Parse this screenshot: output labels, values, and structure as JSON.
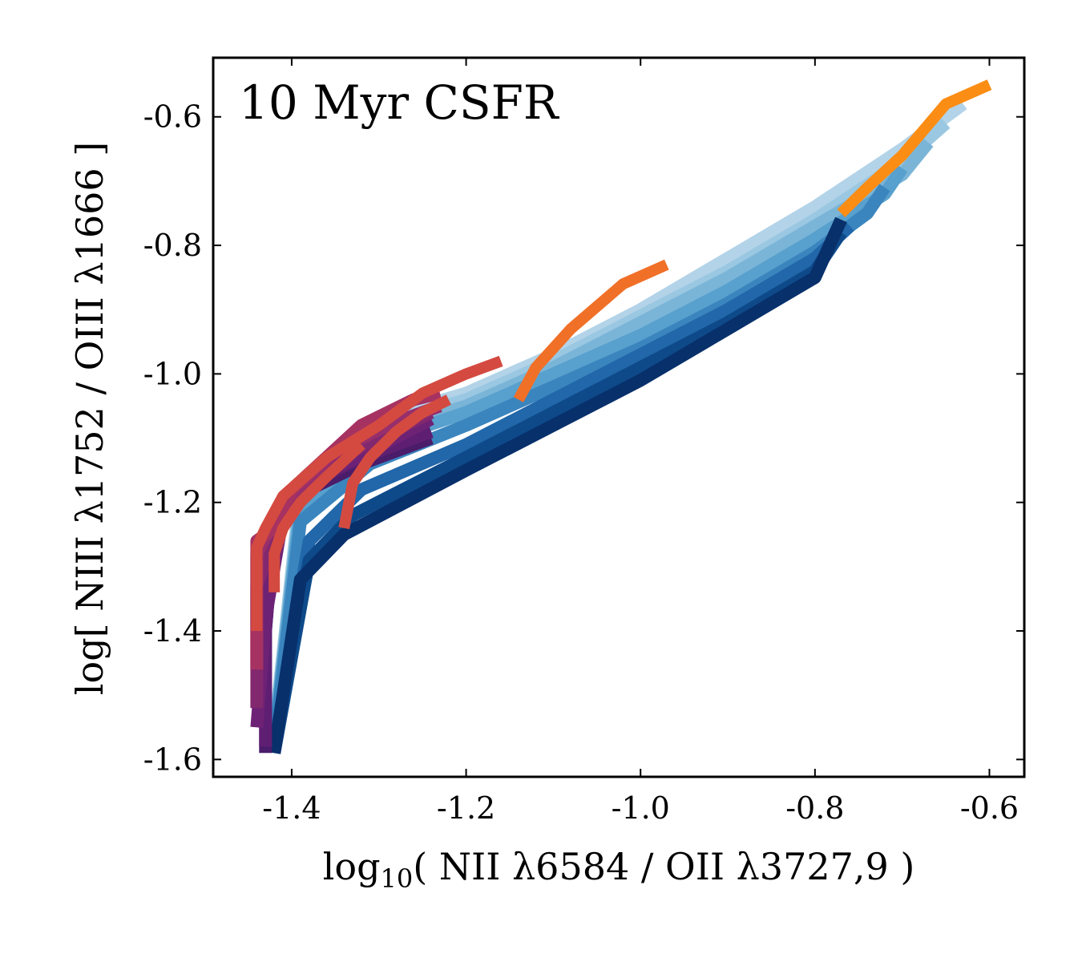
{
  "chart_data": {
    "type": "line",
    "title": "",
    "annotation": "10 Myr CSFR",
    "xlabel": {
      "pre": "log",
      "sub": "10",
      "post": "( NII λ6584 / OII λ3727,9 )"
    },
    "ylabel": "log[ NIII λ1752 / OIII λ1666 ]",
    "xlim": [
      -1.49,
      -0.56
    ],
    "ylim": [
      -1.627,
      -0.508
    ],
    "xticks": [
      -1.4,
      -1.2,
      -1.0,
      -0.8,
      -0.6
    ],
    "xtick_labels": [
      "-1.4",
      "-1.2",
      "-1.0",
      "-0.8",
      "-0.6"
    ],
    "yticks": [
      -1.6,
      -1.4,
      -1.2,
      -1.0,
      -0.8,
      -0.6
    ],
    "ytick_labels": [
      "-1.6",
      "-1.4",
      "-1.2",
      "-1.0",
      "-0.8",
      "-0.6"
    ],
    "background_grid_series": [
      {
        "name": "blue-1",
        "color": "#b3d3e8",
        "x": [
          -1.42,
          -1.39,
          -1.3,
          -1.2,
          -1.1,
          -1.0,
          -0.9,
          -0.8,
          -0.7,
          -0.63
        ],
        "y": [
          -1.56,
          -1.18,
          -1.07,
          -1.03,
          -0.97,
          -0.9,
          -0.82,
          -0.74,
          -0.65,
          -0.58
        ]
      },
      {
        "name": "blue-2",
        "color": "#9ac7e1",
        "x": [
          -1.42,
          -1.39,
          -1.3,
          -1.2,
          -1.1,
          -1.0,
          -0.9,
          -0.8,
          -0.7,
          -0.65
        ],
        "y": [
          -1.56,
          -1.19,
          -1.08,
          -1.04,
          -0.98,
          -0.91,
          -0.84,
          -0.76,
          -0.67,
          -0.61
        ]
      },
      {
        "name": "blue-3",
        "color": "#7ab5d8",
        "x": [
          -1.42,
          -1.39,
          -1.3,
          -1.2,
          -1.1,
          -1.0,
          -0.9,
          -0.8,
          -0.7,
          -0.67
        ],
        "y": [
          -1.57,
          -1.2,
          -1.09,
          -1.05,
          -0.99,
          -0.92,
          -0.85,
          -0.77,
          -0.69,
          -0.64
        ]
      },
      {
        "name": "blue-4",
        "color": "#58a0cd",
        "x": [
          -1.42,
          -1.39,
          -1.31,
          -1.2,
          -1.1,
          -1.0,
          -0.9,
          -0.8,
          -0.72,
          -0.7
        ],
        "y": [
          -1.57,
          -1.21,
          -1.11,
          -1.06,
          -1.0,
          -0.94,
          -0.87,
          -0.79,
          -0.72,
          -0.68
        ]
      },
      {
        "name": "blue-5",
        "color": "#3a85be",
        "x": [
          -1.42,
          -1.39,
          -1.31,
          -1.2,
          -1.1,
          -1.0,
          -0.9,
          -0.8,
          -0.74,
          -0.72
        ],
        "y": [
          -1.58,
          -1.23,
          -1.14,
          -1.08,
          -1.02,
          -0.96,
          -0.89,
          -0.81,
          -0.75,
          -0.71
        ]
      },
      {
        "name": "blue-6",
        "color": "#2167a9",
        "x": [
          -1.42,
          -1.38,
          -1.32,
          -1.2,
          -1.1,
          -1.0,
          -0.9,
          -0.8,
          -0.76
        ],
        "y": [
          -1.58,
          -1.26,
          -1.18,
          -1.11,
          -1.04,
          -0.97,
          -0.9,
          -0.82,
          -0.77
        ]
      },
      {
        "name": "blue-7",
        "color": "#0e4a8a",
        "x": [
          -1.42,
          -1.38,
          -1.33,
          -1.2,
          -1.1,
          -1.0,
          -0.9,
          -0.8,
          -0.77
        ],
        "y": [
          -1.59,
          -1.29,
          -1.22,
          -1.13,
          -1.06,
          -0.99,
          -0.92,
          -0.84,
          -0.78
        ]
      },
      {
        "name": "blue-8",
        "color": "#08306b",
        "x": [
          -1.42,
          -1.39,
          -1.34,
          -1.2,
          -1.1,
          -1.0,
          -0.9,
          -0.8,
          -0.77
        ],
        "y": [
          -1.59,
          -1.32,
          -1.25,
          -1.15,
          -1.08,
          -1.01,
          -0.93,
          -0.85,
          -0.76
        ]
      },
      {
        "name": "purple-1",
        "color": "#4a1c6a",
        "x": [
          -1.43,
          -1.43,
          -1.42,
          -1.38,
          -1.32,
          -1.24
        ],
        "y": [
          -1.59,
          -1.4,
          -1.24,
          -1.18,
          -1.14,
          -1.1
        ]
      },
      {
        "name": "purple-2",
        "color": "#5e1f72",
        "x": [
          -1.43,
          -1.43,
          -1.42,
          -1.38,
          -1.32,
          -1.24
        ],
        "y": [
          -1.58,
          -1.4,
          -1.23,
          -1.17,
          -1.13,
          -1.09
        ]
      },
      {
        "name": "purple-3",
        "color": "#6e2275",
        "x": [
          -1.44,
          -1.43,
          -1.41,
          -1.37,
          -1.31,
          -1.24
        ],
        "y": [
          -1.55,
          -1.38,
          -1.22,
          -1.16,
          -1.12,
          -1.07
        ]
      },
      {
        "name": "purple-4",
        "color": "#82286f",
        "x": [
          -1.44,
          -1.44,
          -1.41,
          -1.36,
          -1.3,
          -1.24
        ],
        "y": [
          -1.52,
          -1.33,
          -1.21,
          -1.14,
          -1.1,
          -1.06
        ]
      },
      {
        "name": "purple-5",
        "color": "#962f6c",
        "x": [
          -1.44,
          -1.44,
          -1.41,
          -1.35,
          -1.29,
          -1.23
        ],
        "y": [
          -1.46,
          -1.28,
          -1.2,
          -1.12,
          -1.08,
          -1.05
        ]
      },
      {
        "name": "purple-6",
        "color": "#a63262",
        "x": [
          -1.44,
          -1.44,
          -1.42,
          -1.4,
          -1.32,
          -1.26,
          -1.23
        ],
        "y": [
          -1.46,
          -1.26,
          -1.24,
          -1.18,
          -1.08,
          -1.04,
          -1.03
        ]
      }
    ],
    "series": [
      {
        "name": "red-track",
        "color": "#d44a40",
        "x": [
          -1.44,
          -1.44,
          -1.43,
          -1.41,
          -1.36,
          -1.3,
          -1.25,
          -1.2,
          -1.16
        ],
        "y": [
          -1.4,
          -1.27,
          -1.24,
          -1.19,
          -1.13,
          -1.08,
          -1.03,
          -1.0,
          -0.98
        ]
      },
      {
        "name": "red-track-2",
        "color": "#d44a40",
        "x": [
          -1.42,
          -1.42,
          -1.41,
          -1.39,
          -1.36,
          -1.32
        ],
        "y": [
          -1.34,
          -1.28,
          -1.24,
          -1.2,
          -1.16,
          -1.11
        ]
      },
      {
        "name": "red-track-3",
        "color": "#d44a40",
        "x": [
          -1.34,
          -1.33,
          -1.31,
          -1.28,
          -1.25,
          -1.22
        ],
        "y": [
          -1.24,
          -1.17,
          -1.13,
          -1.09,
          -1.06,
          -1.04
        ]
      },
      {
        "name": "orange-track-1",
        "color": "#f07028",
        "x": [
          -1.14,
          -1.12,
          -1.08,
          -1.02,
          -0.97
        ],
        "y": [
          -1.04,
          -0.99,
          -0.93,
          -0.86,
          -0.83
        ]
      },
      {
        "name": "orange-track-2",
        "color": "#fb8d15",
        "x": [
          -0.77,
          -0.74,
          -0.7,
          -0.65,
          -0.6
        ],
        "y": [
          -0.75,
          -0.71,
          -0.66,
          -0.58,
          -0.55
        ]
      }
    ]
  }
}
